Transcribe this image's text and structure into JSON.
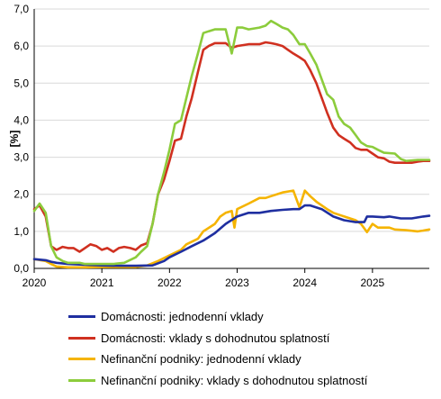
{
  "chart_data": {
    "type": "line",
    "title": "",
    "xlabel": "",
    "ylabel": "[%]",
    "xlim": [
      2020.0,
      2025.84
    ],
    "ylim": [
      0,
      7
    ],
    "yticks": [
      "0,0",
      "1,0",
      "2,0",
      "3,0",
      "4,0",
      "5,0",
      "6,0",
      "7,0"
    ],
    "xticks": [
      "2020",
      "2021",
      "2022",
      "2023",
      "2024",
      "2025"
    ],
    "grid": "horizontal",
    "legend_position": "bottom",
    "series": [
      {
        "name": "Domácnosti: jednodenní vklady",
        "color": "#1f2fa0",
        "points": [
          [
            2020.0,
            0.25
          ],
          [
            2020.17,
            0.22
          ],
          [
            2020.25,
            0.18
          ],
          [
            2020.33,
            0.15
          ],
          [
            2020.5,
            0.12
          ],
          [
            2020.75,
            0.1
          ],
          [
            2021.0,
            0.08
          ],
          [
            2021.25,
            0.07
          ],
          [
            2021.5,
            0.07
          ],
          [
            2021.75,
            0.08
          ],
          [
            2021.92,
            0.2
          ],
          [
            2022.0,
            0.3
          ],
          [
            2022.17,
            0.45
          ],
          [
            2022.33,
            0.6
          ],
          [
            2022.5,
            0.75
          ],
          [
            2022.67,
            0.95
          ],
          [
            2022.83,
            1.2
          ],
          [
            2023.0,
            1.4
          ],
          [
            2023.17,
            1.5
          ],
          [
            2023.33,
            1.5
          ],
          [
            2023.5,
            1.55
          ],
          [
            2023.67,
            1.58
          ],
          [
            2023.83,
            1.6
          ],
          [
            2023.92,
            1.6
          ],
          [
            2024.0,
            1.7
          ],
          [
            2024.08,
            1.7
          ],
          [
            2024.25,
            1.6
          ],
          [
            2024.42,
            1.4
          ],
          [
            2024.58,
            1.3
          ],
          [
            2024.75,
            1.25
          ],
          [
            2024.88,
            1.25
          ],
          [
            2024.92,
            1.4
          ],
          [
            2025.0,
            1.4
          ],
          [
            2025.17,
            1.38
          ],
          [
            2025.25,
            1.4
          ],
          [
            2025.42,
            1.35
          ],
          [
            2025.58,
            1.35
          ],
          [
            2025.75,
            1.4
          ],
          [
            2025.84,
            1.42
          ]
        ]
      },
      {
        "name": "Domácnosti: vklady s dohodnutou splatností",
        "color": "#d03020",
        "points": [
          [
            2020.0,
            1.6
          ],
          [
            2020.08,
            1.7
          ],
          [
            2020.17,
            1.4
          ],
          [
            2020.25,
            0.6
          ],
          [
            2020.33,
            0.5
          ],
          [
            2020.42,
            0.58
          ],
          [
            2020.5,
            0.55
          ],
          [
            2020.58,
            0.55
          ],
          [
            2020.67,
            0.45
          ],
          [
            2020.75,
            0.55
          ],
          [
            2020.83,
            0.65
          ],
          [
            2020.92,
            0.6
          ],
          [
            2021.0,
            0.5
          ],
          [
            2021.08,
            0.55
          ],
          [
            2021.17,
            0.45
          ],
          [
            2021.25,
            0.55
          ],
          [
            2021.33,
            0.58
          ],
          [
            2021.42,
            0.55
          ],
          [
            2021.5,
            0.5
          ],
          [
            2021.58,
            0.62
          ],
          [
            2021.67,
            0.68
          ],
          [
            2021.75,
            1.2
          ],
          [
            2021.83,
            2.0
          ],
          [
            2021.92,
            2.4
          ],
          [
            2022.0,
            2.9
          ],
          [
            2022.08,
            3.45
          ],
          [
            2022.17,
            3.5
          ],
          [
            2022.25,
            4.1
          ],
          [
            2022.33,
            4.6
          ],
          [
            2022.42,
            5.3
          ],
          [
            2022.5,
            5.9
          ],
          [
            2022.58,
            6.0
          ],
          [
            2022.67,
            6.08
          ],
          [
            2022.75,
            6.08
          ],
          [
            2022.83,
            6.08
          ],
          [
            2022.92,
            5.95
          ],
          [
            2023.0,
            6.0
          ],
          [
            2023.17,
            6.05
          ],
          [
            2023.33,
            6.05
          ],
          [
            2023.42,
            6.1
          ],
          [
            2023.5,
            6.08
          ],
          [
            2023.58,
            6.05
          ],
          [
            2023.67,
            6.0
          ],
          [
            2023.75,
            5.9
          ],
          [
            2023.83,
            5.8
          ],
          [
            2023.92,
            5.7
          ],
          [
            2024.0,
            5.6
          ],
          [
            2024.08,
            5.35
          ],
          [
            2024.17,
            5.0
          ],
          [
            2024.25,
            4.6
          ],
          [
            2024.33,
            4.2
          ],
          [
            2024.42,
            3.8
          ],
          [
            2024.5,
            3.6
          ],
          [
            2024.58,
            3.5
          ],
          [
            2024.67,
            3.4
          ],
          [
            2024.75,
            3.25
          ],
          [
            2024.83,
            3.2
          ],
          [
            2024.92,
            3.2
          ],
          [
            2025.0,
            3.1
          ],
          [
            2025.08,
            3.0
          ],
          [
            2025.17,
            2.97
          ],
          [
            2025.25,
            2.88
          ],
          [
            2025.33,
            2.85
          ],
          [
            2025.42,
            2.85
          ],
          [
            2025.5,
            2.85
          ],
          [
            2025.58,
            2.85
          ],
          [
            2025.67,
            2.88
          ],
          [
            2025.75,
            2.9
          ],
          [
            2025.84,
            2.9
          ]
        ]
      },
      {
        "name": "Nefinanční podniky: jednodenní vklady",
        "color": "#f5b400",
        "points": [
          [
            2020.0,
            0.25
          ],
          [
            2020.17,
            0.2
          ],
          [
            2020.25,
            0.12
          ],
          [
            2020.33,
            0.05
          ],
          [
            2020.5,
            0.03
          ],
          [
            2020.75,
            0.03
          ],
          [
            2021.0,
            0.04
          ],
          [
            2021.25,
            0.04
          ],
          [
            2021.5,
            0.04
          ],
          [
            2021.67,
            0.08
          ],
          [
            2021.83,
            0.2
          ],
          [
            2022.0,
            0.35
          ],
          [
            2022.17,
            0.5
          ],
          [
            2022.25,
            0.65
          ],
          [
            2022.42,
            0.8
          ],
          [
            2022.5,
            1.0
          ],
          [
            2022.67,
            1.2
          ],
          [
            2022.75,
            1.4
          ],
          [
            2022.83,
            1.5
          ],
          [
            2022.92,
            1.55
          ],
          [
            2022.96,
            1.1
          ],
          [
            2023.0,
            1.6
          ],
          [
            2023.17,
            1.75
          ],
          [
            2023.33,
            1.9
          ],
          [
            2023.42,
            1.9
          ],
          [
            2023.5,
            1.95
          ],
          [
            2023.67,
            2.05
          ],
          [
            2023.83,
            2.1
          ],
          [
            2023.92,
            1.65
          ],
          [
            2024.0,
            2.1
          ],
          [
            2024.08,
            1.95
          ],
          [
            2024.17,
            1.8
          ],
          [
            2024.25,
            1.7
          ],
          [
            2024.33,
            1.6
          ],
          [
            2024.42,
            1.5
          ],
          [
            2024.5,
            1.45
          ],
          [
            2024.67,
            1.35
          ],
          [
            2024.75,
            1.3
          ],
          [
            2024.83,
            1.2
          ],
          [
            2024.92,
            0.98
          ],
          [
            2025.0,
            1.2
          ],
          [
            2025.08,
            1.1
          ],
          [
            2025.25,
            1.1
          ],
          [
            2025.33,
            1.05
          ],
          [
            2025.5,
            1.03
          ],
          [
            2025.67,
            1.0
          ],
          [
            2025.75,
            1.02
          ],
          [
            2025.84,
            1.05
          ]
        ]
      },
      {
        "name": "Nefinanční podniky: vklady s dohodnutou splatností",
        "color": "#8ccc3c",
        "points": [
          [
            2020.0,
            1.55
          ],
          [
            2020.08,
            1.75
          ],
          [
            2020.17,
            1.5
          ],
          [
            2020.25,
            0.6
          ],
          [
            2020.33,
            0.3
          ],
          [
            2020.42,
            0.2
          ],
          [
            2020.5,
            0.15
          ],
          [
            2020.67,
            0.15
          ],
          [
            2020.75,
            0.12
          ],
          [
            2021.0,
            0.12
          ],
          [
            2021.17,
            0.12
          ],
          [
            2021.33,
            0.15
          ],
          [
            2021.5,
            0.3
          ],
          [
            2021.58,
            0.45
          ],
          [
            2021.67,
            0.6
          ],
          [
            2021.75,
            1.2
          ],
          [
            2021.83,
            2.0
          ],
          [
            2021.92,
            2.6
          ],
          [
            2022.0,
            3.2
          ],
          [
            2022.08,
            3.9
          ],
          [
            2022.17,
            4.0
          ],
          [
            2022.25,
            4.6
          ],
          [
            2022.33,
            5.2
          ],
          [
            2022.42,
            5.8
          ],
          [
            2022.5,
            6.35
          ],
          [
            2022.58,
            6.4
          ],
          [
            2022.67,
            6.45
          ],
          [
            2022.83,
            6.45
          ],
          [
            2022.92,
            5.8
          ],
          [
            2023.0,
            6.5
          ],
          [
            2023.08,
            6.5
          ],
          [
            2023.17,
            6.45
          ],
          [
            2023.33,
            6.5
          ],
          [
            2023.42,
            6.55
          ],
          [
            2023.5,
            6.68
          ],
          [
            2023.58,
            6.6
          ],
          [
            2023.67,
            6.5
          ],
          [
            2023.75,
            6.45
          ],
          [
            2023.83,
            6.3
          ],
          [
            2023.92,
            6.05
          ],
          [
            2024.0,
            6.05
          ],
          [
            2024.08,
            5.8
          ],
          [
            2024.17,
            5.5
          ],
          [
            2024.25,
            5.1
          ],
          [
            2024.33,
            4.7
          ],
          [
            2024.42,
            4.55
          ],
          [
            2024.5,
            4.1
          ],
          [
            2024.58,
            3.9
          ],
          [
            2024.67,
            3.8
          ],
          [
            2024.75,
            3.6
          ],
          [
            2024.83,
            3.4
          ],
          [
            2024.92,
            3.3
          ],
          [
            2025.0,
            3.28
          ],
          [
            2025.08,
            3.2
          ],
          [
            2025.17,
            3.12
          ],
          [
            2025.33,
            3.1
          ],
          [
            2025.42,
            2.95
          ],
          [
            2025.5,
            2.9
          ],
          [
            2025.67,
            2.93
          ],
          [
            2025.84,
            2.93
          ]
        ]
      }
    ]
  }
}
